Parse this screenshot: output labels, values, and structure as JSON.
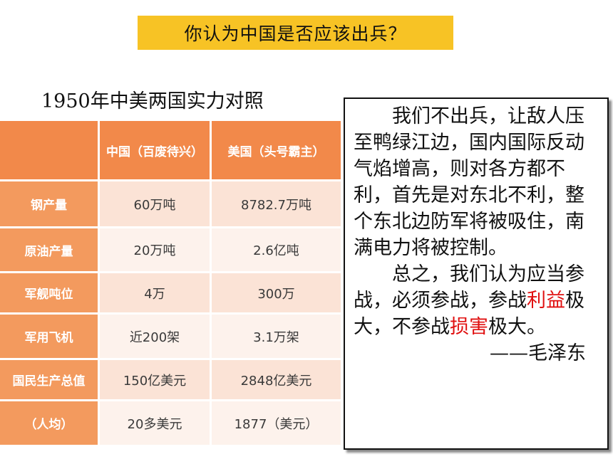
{
  "banner": {
    "text": "你认为中国是否应该出兵？"
  },
  "table": {
    "title": "1950年中美两国实力对照",
    "headers": [
      "",
      "中国（百废待兴）",
      "美国（头号霸主）"
    ],
    "rows": [
      {
        "label": "钢产量",
        "china": "60万吨",
        "usa": "8782.7万吨"
      },
      {
        "label": "原油产量",
        "china": "20万吨",
        "usa": "2.6亿吨"
      },
      {
        "label": "军舰吨位",
        "china": "4万",
        "usa": "300万"
      },
      {
        "label": "军用飞机",
        "china": "近200架",
        "usa": "3.1万架"
      },
      {
        "label": "国民生产总值",
        "china": "150亿美元",
        "usa": "2848亿美元"
      },
      {
        "label": "（人均）",
        "china": "20多美元",
        "usa": "1877（美元）"
      }
    ]
  },
  "quote": {
    "para1": "我们不出兵，让敌人压至鸭绿江边，国内国际反动气焰增高，则对各方都不利，首先是对东北不利，整个东北边防军将被吸住，南满电力将被控制。",
    "para2_a": "总之，我们认为应当参战，必须参战，参战",
    "para2_red1": "利益",
    "para2_b": "极大，不参战",
    "para2_red2": "损害",
    "para2_c": "极大。",
    "signature": "——毛泽东"
  },
  "colors": {
    "banner_bg": "#f7c325",
    "header_bg": "#f2894a",
    "label_bg": "#f39a5e",
    "emphasis": "#e01010"
  }
}
